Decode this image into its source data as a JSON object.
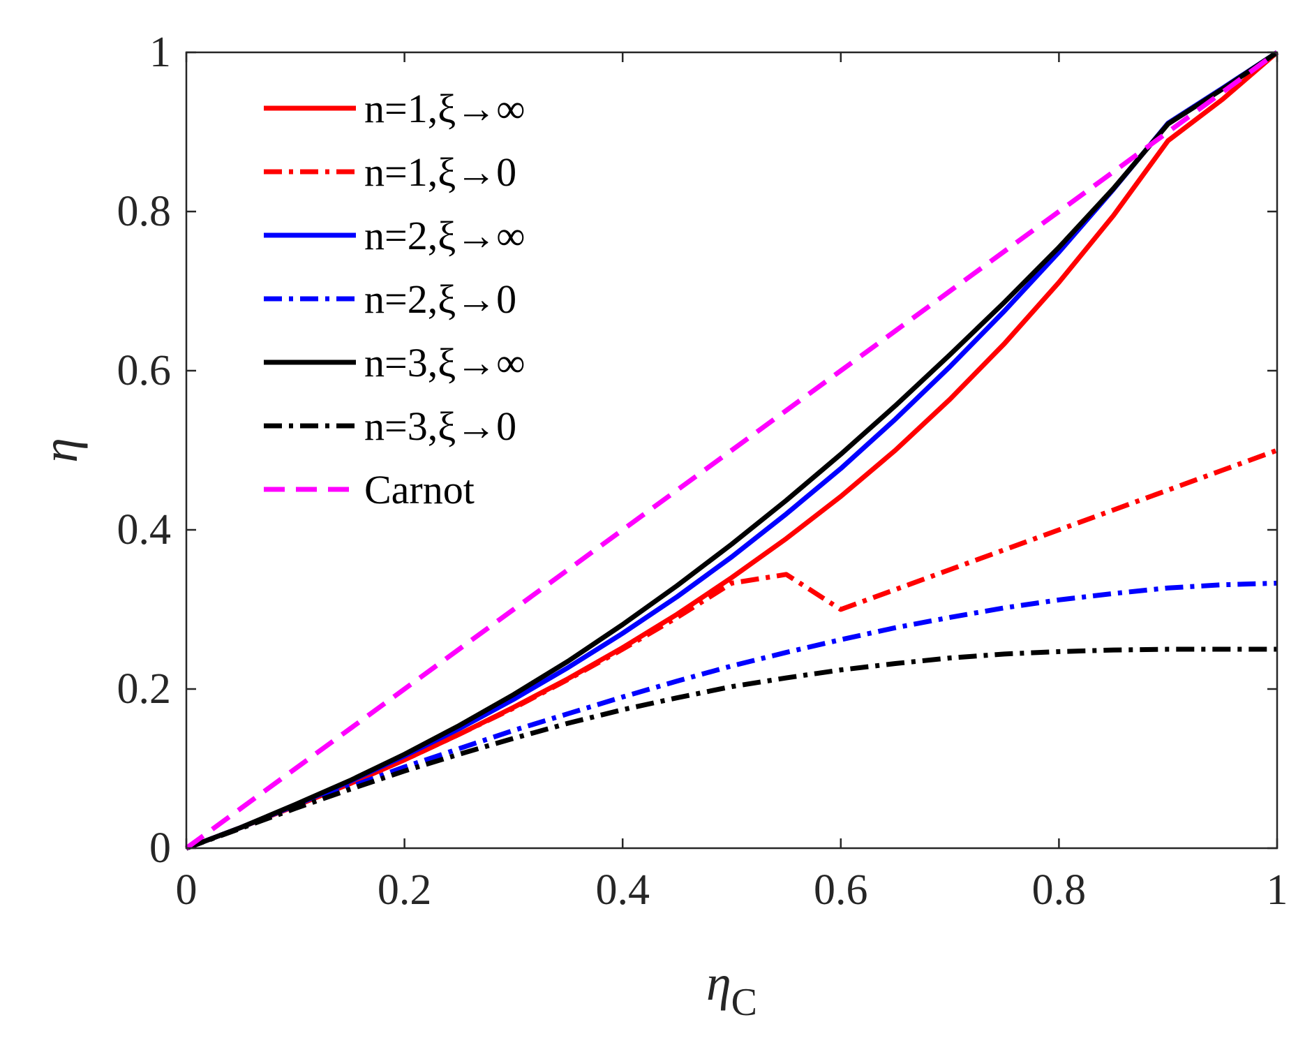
{
  "chart_data": {
    "type": "line",
    "title": "",
    "xlabel": "η",
    "xlabel_subscript": "C",
    "ylabel": "η",
    "xlim": [
      0,
      1
    ],
    "ylim": [
      0,
      1
    ],
    "xticks": [
      0,
      0.2,
      0.4,
      0.6,
      0.8,
      1
    ],
    "yticks": [
      0,
      0.2,
      0.4,
      0.6,
      0.8,
      1
    ],
    "xtick_labels": [
      "0",
      "0.2",
      "0.4",
      "0.6",
      "0.8",
      "1"
    ],
    "ytick_labels": [
      "0",
      "0.2",
      "0.4",
      "0.6",
      "0.8",
      "1"
    ],
    "grid": false,
    "legend_position": "top-left",
    "x": [
      0,
      0.05,
      0.1,
      0.15,
      0.2,
      0.25,
      0.3,
      0.35,
      0.4,
      0.45,
      0.5,
      0.55,
      0.6,
      0.65,
      0.7,
      0.75,
      0.8,
      0.85,
      0.9,
      0.95,
      1.0
    ],
    "series": [
      {
        "name": "n=1,ξ→∞",
        "color": "#ff0000",
        "style": "solid",
        "values": [
          0,
          0.026,
          0.053,
          0.081,
          0.111,
          0.143,
          0.177,
          0.213,
          0.252,
          0.294,
          0.34,
          0.389,
          0.442,
          0.5,
          0.564,
          0.634,
          0.711,
          0.795,
          0.889,
          0.941,
          1.0
        ]
      },
      {
        "name": "n=1,ξ→0",
        "color": "#ff0000",
        "style": "dashdot",
        "values": [
          0,
          0.026,
          0.053,
          0.081,
          0.111,
          0.143,
          0.176,
          0.212,
          0.25,
          0.29,
          0.333,
          0.344,
          0.3,
          0.325,
          0.35,
          0.375,
          0.4,
          0.425,
          0.45,
          0.475,
          0.5
        ]
      },
      {
        "name": "n=2,ξ→∞",
        "color": "#0000ff",
        "style": "solid",
        "values": [
          0,
          0.026,
          0.054,
          0.084,
          0.116,
          0.15,
          0.187,
          0.227,
          0.27,
          0.316,
          0.366,
          0.42,
          0.477,
          0.539,
          0.605,
          0.675,
          0.749,
          0.828,
          0.911,
          0.955,
          1.0
        ]
      },
      {
        "name": "n=2,ξ→0",
        "color": "#0000ff",
        "style": "dashdot",
        "values": [
          0,
          0.026,
          0.052,
          0.077,
          0.102,
          0.125,
          0.148,
          0.169,
          0.19,
          0.21,
          0.229,
          0.246,
          0.262,
          0.277,
          0.29,
          0.302,
          0.312,
          0.32,
          0.327,
          0.331,
          0.333
        ]
      },
      {
        "name": "n=3,ξ→∞",
        "color": "#000000",
        "style": "solid",
        "values": [
          0,
          0.026,
          0.055,
          0.085,
          0.118,
          0.154,
          0.193,
          0.235,
          0.281,
          0.33,
          0.382,
          0.437,
          0.495,
          0.556,
          0.62,
          0.686,
          0.755,
          0.829,
          0.91,
          0.954,
          1.0
        ]
      },
      {
        "name": "n=3,ξ→0",
        "color": "#000000",
        "style": "dashdot",
        "values": [
          0,
          0.025,
          0.05,
          0.074,
          0.097,
          0.118,
          0.138,
          0.157,
          0.174,
          0.189,
          0.203,
          0.214,
          0.224,
          0.232,
          0.239,
          0.244,
          0.247,
          0.249,
          0.25,
          0.25,
          0.25
        ]
      },
      {
        "name": "Carnot",
        "color": "#ff00ff",
        "style": "dashed",
        "values": [
          0,
          0.05,
          0.1,
          0.15,
          0.2,
          0.25,
          0.3,
          0.35,
          0.4,
          0.45,
          0.5,
          0.55,
          0.6,
          0.65,
          0.7,
          0.75,
          0.8,
          0.85,
          0.9,
          0.95,
          1.0
        ]
      }
    ]
  }
}
